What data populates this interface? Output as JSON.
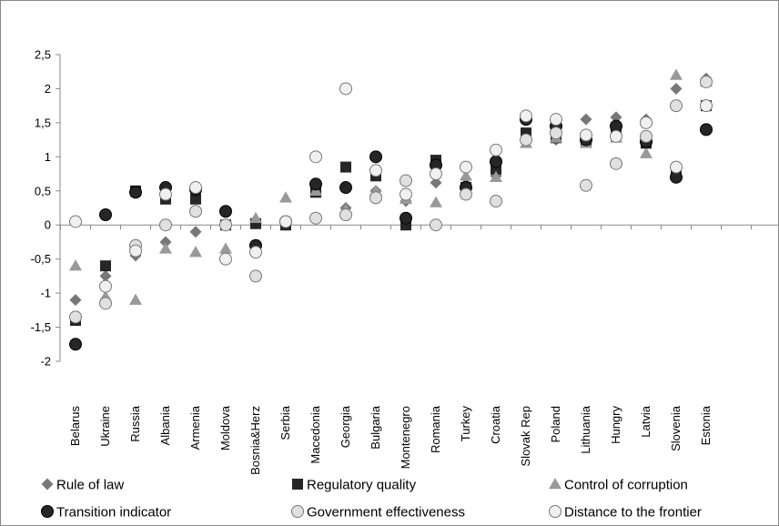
{
  "chart_data": {
    "type": "scatter",
    "categories": [
      "Belarus",
      "Ukraine",
      "Russia",
      "Albania",
      "Armenia",
      "Moldova",
      "Bosnia&Herz",
      "Serbia",
      "Macedonia",
      "Georgia",
      "Bulgaria",
      "Montenegro",
      "Romania",
      "Turkey",
      "Croatia",
      "Slovak Rep",
      "Poland",
      "Lithuania",
      "Hungry",
      "Latvia",
      "Slovenia",
      "Estonia"
    ],
    "ylim": [
      -2,
      2.5
    ],
    "yticks": [
      -2,
      -1.5,
      -1,
      -0.5,
      0,
      0.5,
      1,
      1.5,
      2,
      2.5
    ],
    "ytick_labels": [
      "-2",
      "-1,5",
      "-1",
      "-0,5",
      "0",
      "0,5",
      "1",
      "1,5",
      "2",
      "2,5"
    ],
    "grid": false,
    "legend_position": "bottom",
    "series": [
      {
        "name": "Rule of law",
        "marker": "diamond",
        "color": "#777777",
        "values": [
          -1.1,
          -0.75,
          -0.45,
          -0.25,
          -0.1,
          0,
          0.02,
          0,
          0.5,
          0.25,
          0.5,
          0.35,
          0.62,
          0.6,
          0.72,
          1.25,
          1.25,
          1.55,
          1.58,
          1.55,
          2.0,
          2.15
        ]
      },
      {
        "name": "Regulatory quality",
        "marker": "square",
        "color": "#262626",
        "values": [
          -1.4,
          -0.6,
          0.5,
          0.38,
          0.38,
          0,
          0.02,
          0,
          0.48,
          0.85,
          0.72,
          0,
          0.95,
          0.55,
          0.82,
          1.35,
          1.28,
          1.22,
          1.35,
          1.2,
          0.75,
          1.75
        ]
      },
      {
        "name": "Control of corruption",
        "marker": "triangle",
        "color": "#999999",
        "values": [
          -0.6,
          -1.05,
          -1.1,
          -0.35,
          -0.4,
          -0.35,
          0.1,
          0.4,
          0.5,
          0.22,
          0.5,
          0.38,
          0.33,
          0.72,
          0.7,
          1.2,
          1.28,
          1.2,
          1.28,
          1.05,
          2.2,
          2.1
        ]
      },
      {
        "name": "Transition indicator",
        "marker": "circle",
        "color": "#262626",
        "values": [
          -1.75,
          0.15,
          0.48,
          0.55,
          0.52,
          0.2,
          -0.3,
          0.05,
          0.6,
          0.55,
          1.0,
          0.1,
          0.88,
          0.55,
          0.93,
          1.55,
          1.45,
          1.25,
          1.45,
          1.22,
          0.7,
          1.4
        ]
      },
      {
        "name": "Government effectiveness",
        "marker": "circle",
        "color": "#e0e0e0",
        "values": [
          -1.35,
          -1.15,
          -0.3,
          0,
          0.2,
          0,
          -0.75,
          0.05,
          0.1,
          0.15,
          0.4,
          0.65,
          0,
          0.45,
          0.35,
          1.25,
          1.35,
          0.58,
          0.9,
          1.3,
          1.75,
          2.1
        ]
      },
      {
        "name": "Distance to the frontier",
        "marker": "circle",
        "color": "#f0f0f0",
        "values": [
          0.05,
          -0.9,
          -0.38,
          0.45,
          0.55,
          -0.5,
          -0.4,
          0.05,
          1.0,
          2.0,
          0.8,
          0.45,
          0.75,
          0.85,
          1.1,
          1.6,
          1.55,
          1.32,
          1.3,
          1.5,
          0.85,
          1.75
        ]
      }
    ]
  }
}
